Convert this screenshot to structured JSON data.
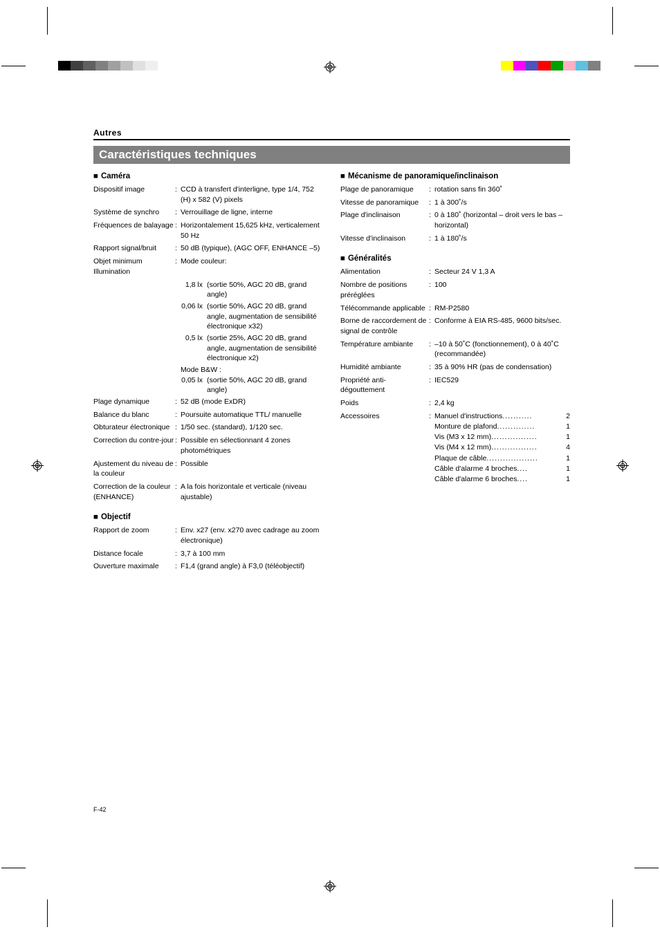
{
  "colors_left": [
    {
      "c": "#000000",
      "w": 18
    },
    {
      "c": "#404040",
      "w": 18
    },
    {
      "c": "#606060",
      "w": 18
    },
    {
      "c": "#808080",
      "w": 18
    },
    {
      "c": "#a0a0a0",
      "w": 18
    },
    {
      "c": "#c0c0c0",
      "w": 18
    },
    {
      "c": "#e0e0e0",
      "w": 18
    },
    {
      "c": "#efefef",
      "w": 18
    }
  ],
  "colors_right": [
    {
      "c": "#ffff00",
      "w": 18
    },
    {
      "c": "#ff00ff",
      "w": 18
    },
    {
      "c": "#5050c0",
      "w": 18
    },
    {
      "c": "#ff0000",
      "w": 18
    },
    {
      "c": "#00a000",
      "w": 18
    },
    {
      "c": "#ffb0c0",
      "w": 18
    },
    {
      "c": "#60c0e0",
      "w": 18
    },
    {
      "c": "#808080",
      "w": 18
    }
  ],
  "section_label": "Autres",
  "title": "Caractéristiques techniques",
  "page_number": "F-42",
  "camera": {
    "heading": "Caméra",
    "rows": [
      {
        "label": "Dispositif image",
        "value": "CCD à transfert d'interligne, type 1/4, 752 (H) x 582 (V) pixels"
      },
      {
        "label": "Système de synchro",
        "value": "Verrouillage de ligne, interne"
      },
      {
        "label": "Fréquences de balayage",
        "value": "Horizontalement 15,625 kHz, verticalement 50 Hz"
      },
      {
        "label": "Rapport signal/bruit",
        "value": "50 dB (typique), (AGC OFF, ENHANCE –5)"
      }
    ],
    "illum_label": "Objet minimum Illumination",
    "illum_colon": ":",
    "mode_color": "Mode couleur:",
    "illum_color": [
      {
        "lx": "1,8 lx",
        "txt": "(sortie 50%, AGC 20 dB, grand angle)"
      },
      {
        "lx": "0,06 lx",
        "txt": "(sortie 50%, AGC 20 dB, grand angle, augmentation de sensibilité électronique x32)"
      },
      {
        "lx": "0,5 lx",
        "txt": "(sortie 25%, AGC 20 dB, grand angle, augmentation de sensibilité électronique x2)"
      }
    ],
    "mode_bw": "Mode B&W :",
    "illum_bw": [
      {
        "lx": "0,05 lx",
        "txt": "(sortie 50%, AGC 20 dB, grand angle)"
      }
    ],
    "rows2": [
      {
        "label": "Plage dynamique",
        "value": "52 dB (mode ExDR)"
      },
      {
        "label": "Balance du blanc",
        "value": "Poursuite automatique TTL/ manuelle"
      },
      {
        "label": "Obturateur électronique",
        "value": "1/50 sec. (standard), 1/120 sec."
      },
      {
        "label": "Correction du contre-jour",
        "value": "Possible en sélectionnant 4 zones photométriques"
      },
      {
        "label": "Ajustement du niveau de la couleur",
        "value": " Possible"
      },
      {
        "label": "Correction de la couleur (ENHANCE)",
        "value": "A la fois horizontale et verticale (niveau ajustable)"
      }
    ]
  },
  "objectif": {
    "heading": "Objectif",
    "rows": [
      {
        "label": "Rapport de zoom",
        "value": "Env. x27 (env. x270 avec cadrage au zoom électronique)"
      },
      {
        "label": "Distance focale",
        "value": "3,7 à 100 mm"
      },
      {
        "label": "Ouverture maximale",
        "value": "F1,4 (grand angle) à F3,0 (téléobjectif)"
      }
    ]
  },
  "mechanism": {
    "heading": "Mécanisme de panoramique/inclinaison",
    "rows": [
      {
        "label": "Plage de panoramique",
        "value": "rotation sans fin 360˚"
      },
      {
        "label": "Vitesse de panoramique",
        "value": "1 à 300˚/s"
      },
      {
        "label": "Plage d'inclinaison",
        "value": "0 à 180˚ (horizontal – droit vers le bas – horizontal)"
      },
      {
        "label": "Vitesse d'inclinaison",
        "value": "1 à 180˚/s"
      }
    ]
  },
  "general": {
    "heading": "Généralités",
    "rows": [
      {
        "label": "Alimentation",
        "value": "Secteur 24 V 1,3 A"
      },
      {
        "label": "Nombre de positions préréglées",
        "value": "100"
      },
      {
        "label": "Télécommande applicable",
        "value": "RM-P2580"
      },
      {
        "label": "Borne de raccordement de signal de contrôle",
        "value": "Conforme à EIA RS-485, 9600 bits/sec."
      },
      {
        "label": "Température ambiante",
        "value": "–10 à 50˚C (fonctionnement), 0 à 40˚C (recommandée)"
      },
      {
        "label": "Humidité ambiante",
        "value": "35 à 90% HR (pas de condensation)"
      },
      {
        "label": "Propriété anti-dégouttement",
        "value": "IEC529"
      },
      {
        "label": "Poids",
        "value": "2,4 kg"
      }
    ],
    "acc_label": "Accessoires",
    "accessories": [
      {
        "name": "Manuel d'instructions",
        "dots": "...........",
        "qty": "2"
      },
      {
        "name": "Monture de plafond",
        "dots": "..............",
        "qty": "1"
      },
      {
        "name": "Vis (M3 x 12 mm)",
        "dots": ".................",
        "qty": "1"
      },
      {
        "name": "Vis (M4 x 12 mm)",
        "dots": ".................",
        "qty": "4"
      },
      {
        "name": "Plaque de câble",
        "dots": "...................",
        "qty": "1"
      },
      {
        "name": "Câble d'alarme 4 broches",
        "dots": "....",
        "qty": "1"
      },
      {
        "name": "Câble d'alarme 6 broches",
        "dots": "....",
        "qty": "1"
      }
    ]
  }
}
